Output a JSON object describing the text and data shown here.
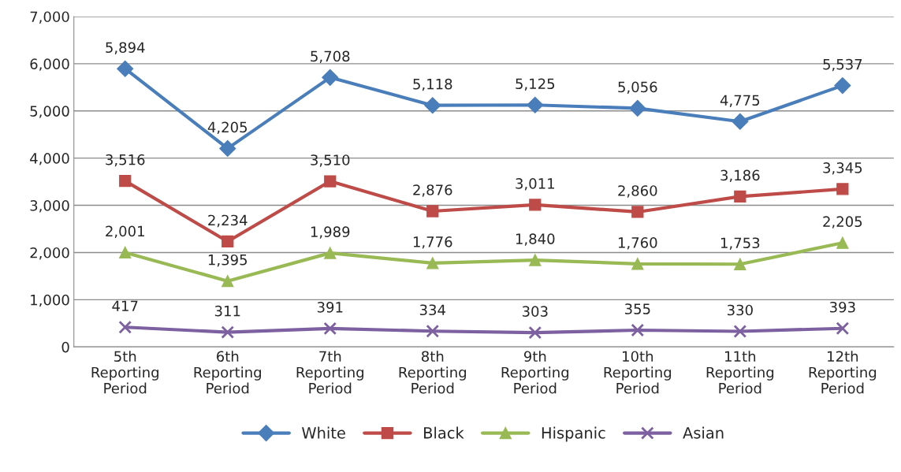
{
  "chart_data": {
    "type": "line",
    "categories": [
      "5th\nReporting\nPeriod",
      "6th\nReporting\nPeriod",
      "7th\nReporting\nPeriod",
      "8th\nReporting\nPeriod",
      "9th\nReporting\nPeriod",
      "10th\nReporting\nPeriod",
      "11th\nReporting\nPeriod",
      "12th\nReporting\nPeriod"
    ],
    "series": [
      {
        "name": "White",
        "color": "#4a7ebb",
        "marker": "diamond",
        "values": [
          5894,
          4205,
          5708,
          5118,
          5125,
          5056,
          4775,
          5537
        ],
        "value_labels": [
          "5,894",
          "4,205",
          "5,708",
          "5,118",
          "5,125",
          "5,056",
          "4,775",
          "5,537"
        ]
      },
      {
        "name": "Black",
        "color": "#be4b48",
        "marker": "square",
        "values": [
          3516,
          2234,
          3510,
          2876,
          3011,
          2860,
          3186,
          3345
        ],
        "value_labels": [
          "3,516",
          "2,234",
          "3,510",
          "2,876",
          "3,011",
          "2,860",
          "3,186",
          "3,345"
        ]
      },
      {
        "name": "Hispanic",
        "color": "#98b954",
        "marker": "triangle",
        "values": [
          2001,
          1395,
          1989,
          1776,
          1840,
          1760,
          1753,
          2205
        ],
        "value_labels": [
          "2,001",
          "1,395",
          "1,989",
          "1,776",
          "1,840",
          "1,760",
          "1,753",
          "2,205"
        ]
      },
      {
        "name": "Asian",
        "color": "#7d60a0",
        "marker": "cross",
        "values": [
          417,
          311,
          391,
          334,
          303,
          355,
          330,
          393
        ],
        "value_labels": [
          "417",
          "311",
          "391",
          "334",
          "303",
          "355",
          "330",
          "393"
        ]
      }
    ],
    "ylim": [
      0,
      7000
    ],
    "yticks": [
      {
        "value": 0,
        "label": "0"
      },
      {
        "value": 1000,
        "label": "1,000"
      },
      {
        "value": 2000,
        "label": "2,000"
      },
      {
        "value": 3000,
        "label": "3,000"
      },
      {
        "value": 4000,
        "label": "4,000"
      },
      {
        "value": 5000,
        "label": "5,000"
      },
      {
        "value": 6000,
        "label": "6,000"
      },
      {
        "value": 7000,
        "label": "7,000"
      }
    ],
    "grid": "y",
    "legend": "bottom",
    "line_style": "solid"
  }
}
